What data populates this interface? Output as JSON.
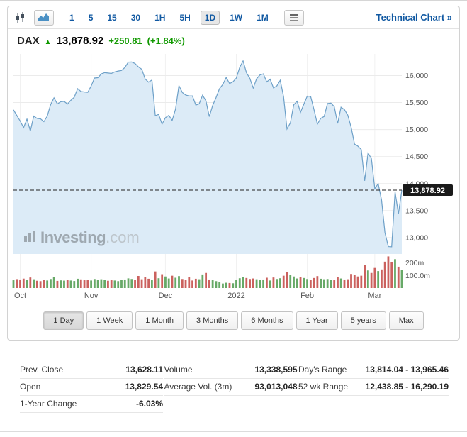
{
  "colors": {
    "accent_blue": "#1159a2",
    "green": "#119900",
    "area_fill": "#dcebf7",
    "line_blue": "#6da0c8",
    "vol_up": "#67a967",
    "vol_down": "#cb615e",
    "tag_bg": "#1a1a1a",
    "grid": "#ebebeb",
    "axis_text": "#555555"
  },
  "toolbar": {
    "icons": [
      "candlestick-chart-icon",
      "area-chart-type-icon",
      "key-stats-icon"
    ],
    "timeframes": [
      "1",
      "5",
      "15",
      "30",
      "1H",
      "5H",
      "1D",
      "1W",
      "1M"
    ],
    "selected_timeframe": "1D",
    "technical_chart_label": "Technical Chart »"
  },
  "header": {
    "symbol": "DAX",
    "direction": "up",
    "price": "13,878.92",
    "change": "+250.81",
    "change_pct": "(+1.84%)"
  },
  "watermark": {
    "bold": "Investing",
    "light": ".com"
  },
  "chart_data": {
    "type": "area",
    "title": "DAX index price with volume, Oct 2021 - Mar 2022, 1D",
    "ylim": [
      12750,
      16400
    ],
    "y_ticks": [
      {
        "value": 13000,
        "label": "13,000"
      },
      {
        "value": 13500,
        "label": "13,500"
      },
      {
        "value": 14000,
        "label": "14,000"
      },
      {
        "value": 14500,
        "label": "14,500"
      },
      {
        "value": 15000,
        "label": "15,000"
      },
      {
        "value": 15500,
        "label": "15,500"
      },
      {
        "value": 16000,
        "label": "16,000"
      }
    ],
    "current_price": 13878.92,
    "current_price_label": "13,878.92",
    "volume_max": 260,
    "volume_ticks": [
      {
        "value": 200,
        "label": "200m"
      },
      {
        "value": 100,
        "label": "100.0m"
      }
    ],
    "month_ticks": [
      {
        "label": "Oct",
        "i": 2
      },
      {
        "label": "Nov",
        "i": 23
      },
      {
        "label": "Dec",
        "i": 45
      },
      {
        "label": "2022",
        "i": 66
      },
      {
        "label": "Feb",
        "i": 87
      },
      {
        "label": "Mar",
        "i": 107
      }
    ],
    "prices": [
      15365,
      15260,
      15156,
      15036,
      15194,
      14973,
      15250,
      15206,
      15199,
      15146,
      15249,
      15462,
      15587,
      15474,
      15515,
      15522,
      15472,
      15542,
      15599,
      15757,
      15705,
      15696,
      15689,
      15806,
      15954,
      15960,
      16030,
      16054,
      16047,
      16040,
      16068,
      16083,
      16094,
      16149,
      16248,
      16251,
      16222,
      16160,
      16116,
      15937,
      15878,
      15917,
      15257,
      15281,
      15100,
      15220,
      15263,
      15170,
      15381,
      15813,
      15687,
      15639,
      15623,
      15622,
      15454,
      15476,
      15636,
      15532,
      15240,
      15448,
      15593,
      15756,
      15836,
      15964,
      15852,
      15885,
      15954,
      16152,
      16271,
      16052,
      15948,
      15768,
      15941,
      16010,
      16031,
      15883,
      15933,
      15772,
      15809,
      15912,
      15604,
      15011,
      15124,
      15459,
      15524,
      15319,
      15471,
      15619,
      15614,
      15368,
      15100,
      15207,
      15242,
      15482,
      15490,
      15425,
      15114,
      15413,
      15370,
      15268,
      15043,
      14731,
      14693,
      14631,
      14052,
      14567,
      14461,
      13905,
      14000,
      13698,
      13095,
      12834,
      12831,
      13848,
      13442,
      13878.92
    ],
    "volumes": [
      62,
      71,
      68,
      75,
      66,
      84,
      70,
      58,
      55,
      63,
      60,
      72,
      88,
      57,
      61,
      59,
      64,
      60,
      56,
      74,
      69,
      62,
      67,
      60,
      72,
      64,
      70,
      66,
      58,
      62,
      60,
      55,
      63,
      68,
      77,
      72,
      65,
      96,
      70,
      88,
      74,
      62,
      132,
      78,
      110,
      92,
      76,
      98,
      82,
      95,
      72,
      66,
      88,
      60,
      74,
      70,
      108,
      120,
      68,
      62,
      55,
      48,
      36,
      42,
      40,
      38,
      64,
      78,
      85,
      80,
      72,
      76,
      70,
      66,
      68,
      82,
      60,
      84,
      72,
      78,
      98,
      128,
      102,
      92,
      76,
      85,
      80,
      72,
      66,
      80,
      95,
      74,
      70,
      72,
      64,
      62,
      88,
      76,
      68,
      70,
      112,
      105,
      92,
      98,
      185,
      140,
      120,
      160,
      135,
      148,
      210,
      252,
      205,
      230,
      170,
      146
    ]
  },
  "periods": [
    "1 Day",
    "1 Week",
    "1 Month",
    "3 Months",
    "6 Months",
    "1 Year",
    "5 years",
    "Max"
  ],
  "selected_period": "1 Day",
  "stats": {
    "col1": [
      {
        "label": "Prev. Close",
        "value": "13,628.11"
      },
      {
        "label": "Open",
        "value": "13,829.54"
      },
      {
        "label": "1-Year Change",
        "value": "-6.03%"
      }
    ],
    "col2": [
      {
        "label": "Volume",
        "value": "13,338,595"
      },
      {
        "label": "Average Vol. (3m)",
        "value": "93,013,048"
      }
    ],
    "col3": [
      {
        "label": "Day's Range",
        "value": "13,814.04 - 13,965.46"
      },
      {
        "label": "52 wk Range",
        "value": "12,438.85 - 16,290.19"
      }
    ]
  }
}
